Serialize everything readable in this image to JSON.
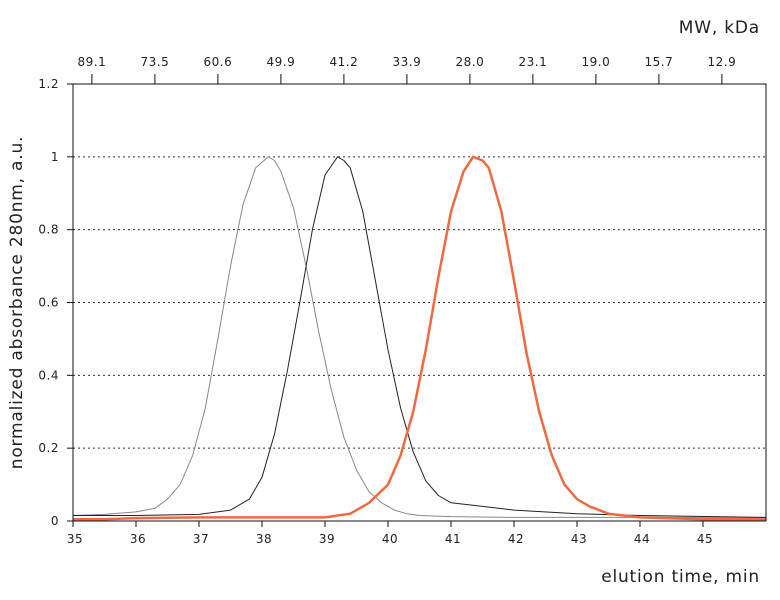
{
  "chart_data": {
    "type": "line",
    "xlabel": "elution time, min",
    "ylabel": "normalized absorbance 280nm, a.u.",
    "top_axis_label": "MW, kDa",
    "xlim": [
      35,
      46
    ],
    "ylim": [
      0,
      1.2
    ],
    "x_ticks": [
      35,
      36,
      37,
      38,
      39,
      40,
      41,
      42,
      43,
      44,
      45
    ],
    "x_tick_labels": [
      "35",
      "36",
      "37",
      "38",
      "39",
      "40",
      "41",
      "42",
      "43",
      "44",
      "45"
    ],
    "y_ticks": [
      0,
      0.2,
      0.4,
      0.6,
      0.8,
      1,
      1.2
    ],
    "y_tick_labels": [
      "0",
      "0.2",
      "0.4",
      "0.6",
      "0.8",
      "1",
      "1.2"
    ],
    "top_ticks_x": [
      35.3,
      36.3,
      37.3,
      38.3,
      39.3,
      40.3,
      41.3,
      42.3,
      43.3,
      44.3,
      45.3
    ],
    "top_tick_labels": [
      "89.1",
      "73.5",
      "60.6",
      "49.9",
      "41.2",
      "33.9",
      "28.0",
      "23.1",
      "19.0",
      "15.7",
      "12.9"
    ],
    "gridlines": {
      "horizontal": true,
      "style": "dotted"
    },
    "series": [
      {
        "color": "#888888",
        "x": [
          35.0,
          35.5,
          36.0,
          36.3,
          36.5,
          36.7,
          36.9,
          37.1,
          37.3,
          37.5,
          37.7,
          37.9,
          38.1,
          38.2,
          38.3,
          38.5,
          38.7,
          38.9,
          39.1,
          39.3,
          39.5,
          39.7,
          39.9,
          40.1,
          40.3,
          40.5,
          41.0,
          42.0,
          43.0,
          44.0,
          46.0
        ],
        "y": [
          0.015,
          0.018,
          0.025,
          0.035,
          0.06,
          0.1,
          0.18,
          0.31,
          0.5,
          0.7,
          0.87,
          0.97,
          1.0,
          0.99,
          0.96,
          0.86,
          0.7,
          0.52,
          0.36,
          0.23,
          0.14,
          0.08,
          0.05,
          0.03,
          0.02,
          0.015,
          0.012,
          0.01,
          0.01,
          0.01,
          0.01
        ]
      },
      {
        "color": "#222222",
        "x": [
          35.0,
          36.0,
          37.0,
          37.5,
          37.8,
          38.0,
          38.2,
          38.4,
          38.6,
          38.8,
          39.0,
          39.2,
          39.3,
          39.4,
          39.6,
          39.8,
          40.0,
          40.2,
          40.4,
          40.6,
          40.8,
          41.0,
          41.5,
          42.0,
          43.0,
          44.0,
          46.0
        ],
        "y": [
          0.015,
          0.015,
          0.018,
          0.03,
          0.06,
          0.12,
          0.24,
          0.41,
          0.6,
          0.8,
          0.95,
          1.0,
          0.99,
          0.97,
          0.85,
          0.66,
          0.47,
          0.31,
          0.19,
          0.11,
          0.07,
          0.05,
          0.04,
          0.03,
          0.02,
          0.015,
          0.01
        ]
      },
      {
        "color": "#ee6a40",
        "x": [
          35.0,
          35.5,
          36.0,
          37.0,
          38.0,
          39.0,
          39.4,
          39.7,
          40.0,
          40.2,
          40.4,
          40.6,
          40.8,
          41.0,
          41.2,
          41.35,
          41.5,
          41.6,
          41.8,
          42.0,
          42.2,
          42.4,
          42.6,
          42.8,
          43.0,
          43.2,
          43.5,
          44.0,
          45.0,
          46.0
        ],
        "y": [
          0.005,
          0.005,
          0.008,
          0.01,
          0.01,
          0.01,
          0.02,
          0.05,
          0.1,
          0.18,
          0.3,
          0.47,
          0.67,
          0.85,
          0.96,
          1.0,
          0.99,
          0.97,
          0.85,
          0.66,
          0.46,
          0.3,
          0.18,
          0.1,
          0.06,
          0.04,
          0.02,
          0.01,
          0.005,
          0.005
        ]
      }
    ]
  }
}
